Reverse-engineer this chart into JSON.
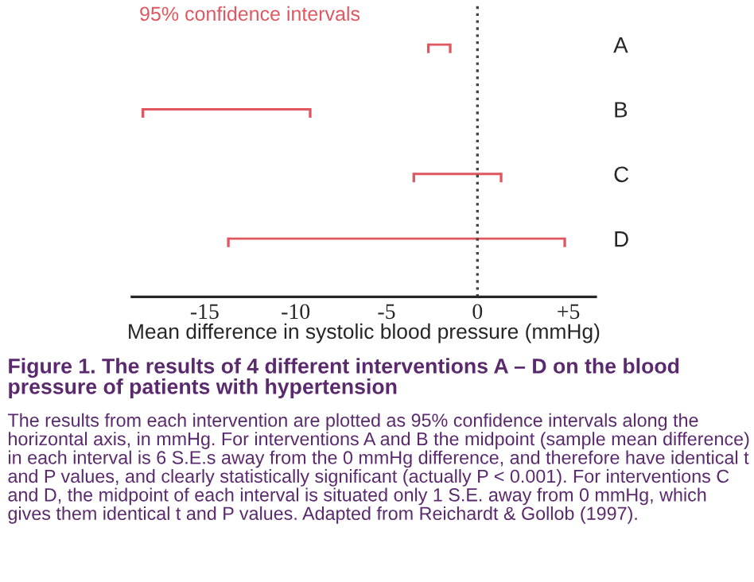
{
  "chart_data": {
    "type": "bar",
    "orientation": "horizontal",
    "title": "Figure 1. The results of 4 different interventions A – D on the blood pressure of patients with hypertension",
    "xlabel": "Mean difference in systolic blood pressure (mmHg)",
    "categories": [
      "A",
      "B",
      "C",
      "D"
    ],
    "base": [
      -2.7,
      -18.4,
      -3.5,
      -13.7
    ],
    "values": [
      1.2,
      9.2,
      4.8,
      18.5
    ],
    "color": "#e0575f",
    "xlim": [
      -19,
      6.5
    ],
    "xticks": [
      -15,
      -10,
      -5,
      0,
      {
        "value": 5,
        "label": "+5"
      }
    ],
    "ref_lines": [
      {
        "axis": "x",
        "value": 0,
        "color": "#444444",
        "line_style": "dotted"
      }
    ],
    "annotations": [
      "95% confidence intervals",
      "The results from each intervention are plotted as 95% confidence intervals along the horizontal axis, in mmHg. For interventions A and B the midpoint (sample mean difference) in each interval is 6 S.E.s away from the 0 mmHg difference, and therefore have identical t and P values, and clearly statistically significant (actually P < 0.001). For interventions C and D, the midpoint of each interval is situated only 1 S.E. away from 0 mmHg, which gives them identical t and P values. Adapted from Reichardt & Gollob (1997)."
    ],
    "grid": false,
    "legend": false
  }
}
